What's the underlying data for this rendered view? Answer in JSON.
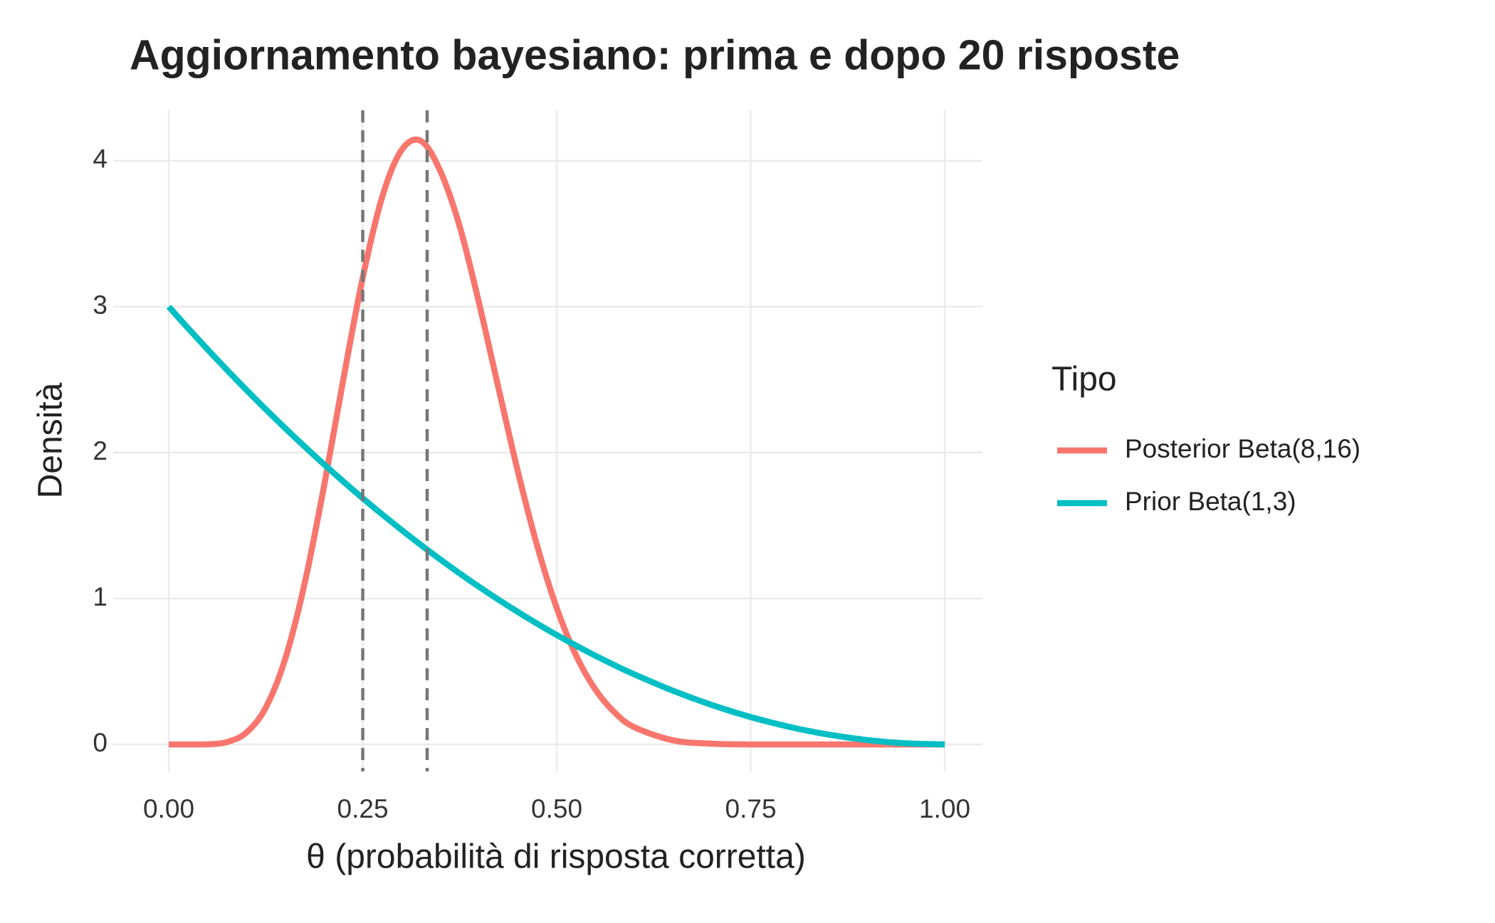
{
  "chart_data": {
    "type": "line",
    "title": "Aggiornamento bayesiano: prima e dopo 20 risposte",
    "x_label": "θ (probabilità di risposta corretta)",
    "y_label": "Densità",
    "legend_title": "Tipo",
    "legend_position": "right",
    "grid": true,
    "x": [
      0,
      0.025,
      0.05,
      0.075,
      0.1,
      0.125,
      0.15,
      0.175,
      0.2,
      0.225,
      0.25,
      0.275,
      0.3,
      0.325,
      0.35,
      0.375,
      0.4,
      0.425,
      0.45,
      0.475,
      0.5,
      0.525,
      0.55,
      0.575,
      0.6,
      0.65,
      0.7,
      0.75,
      0.8,
      0.85,
      0.9,
      0.95,
      1
    ],
    "series": [
      {
        "name": "Posterior Beta(8,16)",
        "color": "#F8766D",
        "values": [
          0,
          0,
          0.001,
          0.016,
          0.081,
          0.252,
          0.585,
          1.101,
          1.767,
          2.503,
          3.199,
          3.751,
          4.073,
          4.136,
          3.929,
          3.549,
          3.022,
          2.441,
          1.869,
          1.358,
          0.935,
          0.609,
          0.375,
          0.217,
          0.118,
          0.028,
          0.005,
          0,
          0,
          0,
          0,
          0,
          0
        ]
      },
      {
        "name": "Prior Beta(1,3)",
        "color": "#00BFC4",
        "values": [
          3,
          2.852,
          2.7075,
          2.5669,
          2.43,
          2.2969,
          2.1675,
          2.0419,
          1.92,
          1.8019,
          1.6875,
          1.5769,
          1.47,
          1.3669,
          1.2675,
          1.1719,
          1.08,
          0.9919,
          0.9075,
          0.8269,
          0.75,
          0.6769,
          0.6075,
          0.5419,
          0.48,
          0.3675,
          0.27,
          0.1875,
          0.12,
          0.0675,
          0.03,
          0.0075,
          0
        ]
      }
    ],
    "vlines": [
      0.25,
      0.333
    ],
    "vline_color": "#777777",
    "xlim": [
      -0.0716,
      1.0486
    ],
    "ylim": [
      -0.185,
      4.346
    ],
    "xticks": [
      {
        "value": 0,
        "label": "0.00"
      },
      {
        "value": 0.25,
        "label": "0.25"
      },
      {
        "value": 0.5,
        "label": "0.50"
      },
      {
        "value": 0.75,
        "label": "0.75"
      },
      {
        "value": 1,
        "label": "1.00"
      }
    ],
    "yticks": [
      0,
      1,
      2,
      3,
      4
    ]
  }
}
